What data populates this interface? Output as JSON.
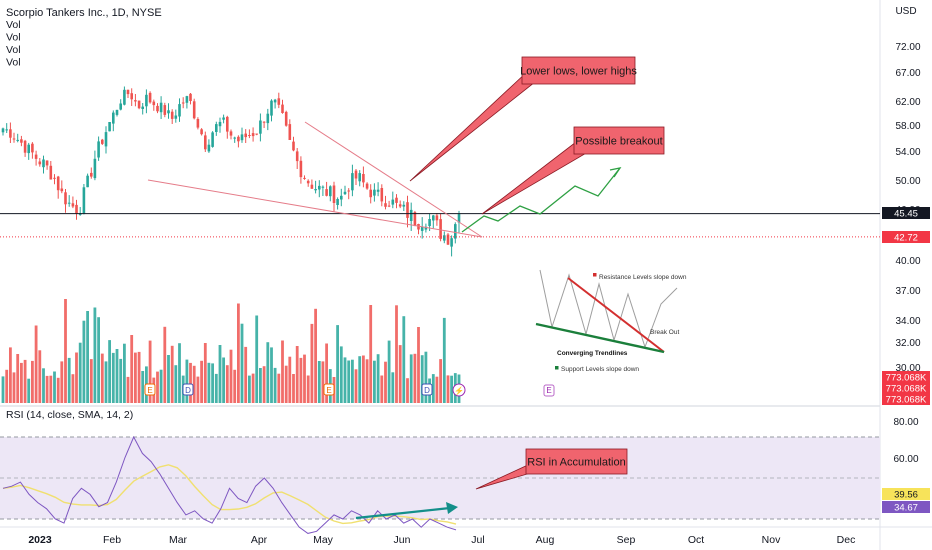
{
  "header": {
    "symbol_title": "Scorpio Tankers Inc., 1D, NYSE",
    "vol_lines": [
      "Vol",
      "Vol",
      "Vol",
      "Vol"
    ],
    "currency": "USD"
  },
  "rsi_header": "RSI (14, close, SMA, 14, 2)",
  "price_axis": {
    "ticks": [
      "72.00",
      "67.00",
      "62.00",
      "58.00",
      "54.00",
      "50.00",
      "46.00",
      "40.00",
      "37.00",
      "34.00",
      "32.00",
      "30.00"
    ],
    "badges": [
      {
        "text": "45.45",
        "color": "#131722"
      },
      {
        "text": "42.72",
        "color": "#f23645"
      },
      {
        "text": "773.068K",
        "color": "#f23645"
      },
      {
        "text": "773.068K",
        "color": "#f23645"
      },
      {
        "text": "773.068K",
        "color": "#f23645"
      }
    ]
  },
  "rsi_axis": {
    "ticks": [
      "80.00",
      "60.00"
    ],
    "badges": [
      {
        "text": "39.56",
        "color": "#f7e35a"
      },
      {
        "text": "34.67",
        "color": "#7e57c2"
      }
    ]
  },
  "time_axis": [
    "2023",
    "Feb",
    "Mar",
    "Apr",
    "May",
    "Jun",
    "Jul",
    "Aug",
    "Sep",
    "Oct",
    "Nov",
    "Dec"
  ],
  "event_markers": [
    "E",
    "D",
    "E",
    "D",
    "⚡",
    "E"
  ],
  "callouts": {
    "lower_lows": "Lower lows, lower highs",
    "breakout": "Possible breakout",
    "rsi": "RSI in Accumulation"
  },
  "inset": {
    "resistance": "Resistance Levels  slope down",
    "break_out": "Break Out",
    "converging": "Converging Trendlines",
    "support": "Support Levels slope down"
  },
  "colors": {
    "up": "#26a69a",
    "down": "#ef5350",
    "rsi_line": "#7e57c2",
    "rsi_ma": "#f0e070",
    "rsi_band": "#ede7f6",
    "callout_fill": "#f0646e",
    "projection": "#2ea043",
    "trendline": "#e57c89"
  },
  "chart_data": {
    "type": "candlestick",
    "title": "Scorpio Tankers Inc., 1D, NYSE",
    "price_axis_ticks": [
      72,
      67,
      62,
      58,
      54,
      50,
      46,
      40,
      37,
      34,
      32,
      30
    ],
    "last_price": 45.45,
    "marked_level": 42.72,
    "approx_close_series": [
      57.5,
      56.8,
      55.5,
      54.2,
      53.0,
      52.0,
      50.5,
      48.0,
      46.5,
      46.0,
      49.5,
      53.5,
      56.5,
      59.5,
      62.5,
      63.5,
      61.0,
      62.5,
      61.5,
      60.5,
      59.0,
      61.5,
      62.5,
      58.5,
      55.0,
      57.5,
      58.5,
      56.5,
      55.5,
      56.5,
      57.0,
      59.5,
      62.0,
      59.5,
      55.0,
      52.0,
      50.0,
      49.0,
      48.5,
      48.0,
      47.5,
      49.5,
      50.5,
      49.0,
      48.0,
      47.5,
      47.0,
      46.0,
      45.5,
      44.5,
      45.0,
      44.5,
      43.0,
      42.7,
      45.45
    ],
    "volume_last": "773.068K",
    "rsi": {
      "label": "RSI (14, close, SMA, 14, 2)",
      "ticks": [
        80,
        60
      ],
      "last_rsi": 34.67,
      "last_rsi_ma": 39.56,
      "approx_rsi_series": [
        55,
        56,
        58,
        52,
        48,
        45,
        40,
        38,
        50,
        55,
        52,
        46,
        48,
        58,
        70,
        80,
        72,
        68,
        62,
        55,
        48,
        42,
        44,
        40,
        38,
        45,
        55,
        50,
        48,
        56,
        60,
        55,
        48,
        42,
        36,
        33,
        34,
        38,
        42,
        40,
        44,
        42,
        38,
        44,
        40,
        42,
        38,
        40,
        36,
        40,
        38,
        36,
        34.67
      ]
    },
    "x_tick_labels": [
      "2023",
      "Feb",
      "Mar",
      "Apr",
      "May",
      "Jun",
      "Jul",
      "Aug",
      "Sep",
      "Oct",
      "Nov",
      "Dec"
    ]
  }
}
